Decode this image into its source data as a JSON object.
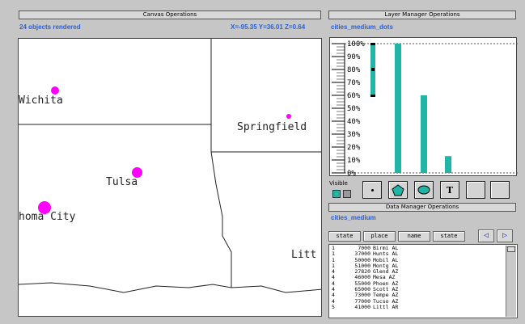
{
  "canvas": {
    "title": "Canvas Operations",
    "objects_rendered": "24 objects rendered",
    "coords": "X=-95.35 Y=36.01 Z=0.64",
    "labels": {
      "wichita": "Wichita",
      "springfield": "Springfield",
      "tulsa": "Tulsa",
      "okc": "homa City",
      "little_rock": "Litt"
    }
  },
  "layer": {
    "title": "Layer Manager Operations",
    "layer_name": "cities_medium_dots",
    "visible_label": "Visible"
  },
  "chart_data": {
    "type": "bar",
    "yticks": [
      "100%",
      "90%",
      "80%",
      "70%",
      "60%",
      "50%",
      "40%",
      "30%",
      "20%",
      "10%",
      "0%"
    ],
    "ylim": [
      0,
      100
    ],
    "range_marker": {
      "low": 60,
      "high": 100,
      "mid": 80
    },
    "values": [
      100,
      60,
      13
    ],
    "grid": false
  },
  "data_manager": {
    "title": "Data Manager Operations",
    "table_name": "cities_medium",
    "columns": [
      "state",
      "place",
      "name",
      "state"
    ],
    "prev": "◁",
    "next": "▷",
    "rows": [
      [
        "1",
        "7000",
        "Birmi AL"
      ],
      [
        "1",
        "37000",
        "Hunts AL"
      ],
      [
        "1",
        "50000",
        "Mobil AL"
      ],
      [
        "1",
        "51000",
        "Montg AL"
      ],
      [
        "4",
        "27820",
        "Glend AZ"
      ],
      [
        "4",
        "46000",
        "Mesa  AZ"
      ],
      [
        "4",
        "55000",
        "Phoen AZ"
      ],
      [
        "4",
        "65000",
        "Scott AZ"
      ],
      [
        "4",
        "73000",
        "Tempe AZ"
      ],
      [
        "4",
        "77000",
        "Tucso AZ"
      ],
      [
        "5",
        "41000",
        "Littl AR"
      ]
    ]
  },
  "colors": {
    "accent": "#2a5fd6",
    "dot": "#ff00ff",
    "bar": "#1fb5a7"
  }
}
